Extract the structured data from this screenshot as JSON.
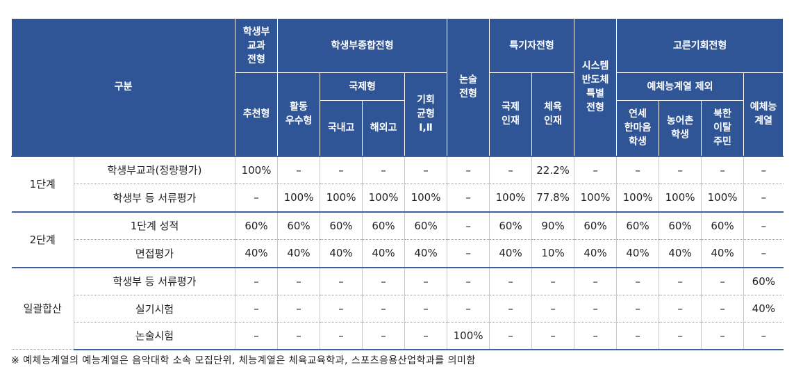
{
  "header": {
    "gubun": "구분",
    "gyogwa": "학생부\n교과\n전형",
    "jonghap": "학생부종합전형",
    "nonsul": "논술\n전형",
    "teukgi": "특기자전형",
    "system": "시스템\n반도체\n특별\n전형",
    "goreun": "고른기회전형",
    "chucheon": "추천형",
    "hwaldong": "활동\n우수형",
    "gukje": "국제형",
    "gihoe": "기회\n균형\nⅠ,Ⅱ",
    "gukje_injae": "국제\n인재",
    "cheyuk_injae": "체육\n인재",
    "yeche_jeoe": "예체능계열 제외",
    "yeche": "예체능\n계열",
    "gungnaego": "국내고",
    "haewaego": "해외고",
    "yonse": "연세\n한마음\n학생",
    "nongeochon": "농어촌\n학생",
    "bukhan": "북한\n이탈\n주민"
  },
  "groups": {
    "stage1": "1단계",
    "stage2": "2단계",
    "ilgwal": "일괄합산"
  },
  "rows": [
    {
      "label": "학생부교과(정량평가)",
      "values": [
        "100%",
        "–",
        "–",
        "–",
        "–",
        "–",
        "–",
        "22.2%",
        "–",
        "–",
        "–",
        "–",
        "–"
      ]
    },
    {
      "label": "학생부 등 서류평가",
      "values": [
        "–",
        "100%",
        "100%",
        "100%",
        "100%",
        "–",
        "100%",
        "77.8%",
        "100%",
        "100%",
        "100%",
        "100%",
        "–"
      ]
    },
    {
      "label": "1단계 성적",
      "values": [
        "60%",
        "60%",
        "60%",
        "60%",
        "60%",
        "–",
        "60%",
        "90%",
        "60%",
        "60%",
        "60%",
        "60%",
        "–"
      ]
    },
    {
      "label": "면접평가",
      "values": [
        "40%",
        "40%",
        "40%",
        "40%",
        "40%",
        "–",
        "40%",
        "10%",
        "40%",
        "40%",
        "40%",
        "40%",
        "–"
      ]
    },
    {
      "label": "학생부 등 서류평가",
      "values": [
        "–",
        "–",
        "–",
        "–",
        "–",
        "–",
        "–",
        "–",
        "–",
        "–",
        "–",
        "–",
        "60%"
      ]
    },
    {
      "label": "실기시험",
      "values": [
        "–",
        "–",
        "–",
        "–",
        "–",
        "–",
        "–",
        "–",
        "–",
        "–",
        "–",
        "–",
        "40%"
      ]
    },
    {
      "label": "논술시험",
      "values": [
        "–",
        "–",
        "–",
        "–",
        "–",
        "100%",
        "–",
        "–",
        "–",
        "–",
        "–",
        "–",
        "–"
      ]
    }
  ],
  "note": "※ 예체능계열의 예능계열은 음악대학 소속 모집단위, 체능계열은 체육교육학과, 스포츠응용산업학과를 의미함"
}
